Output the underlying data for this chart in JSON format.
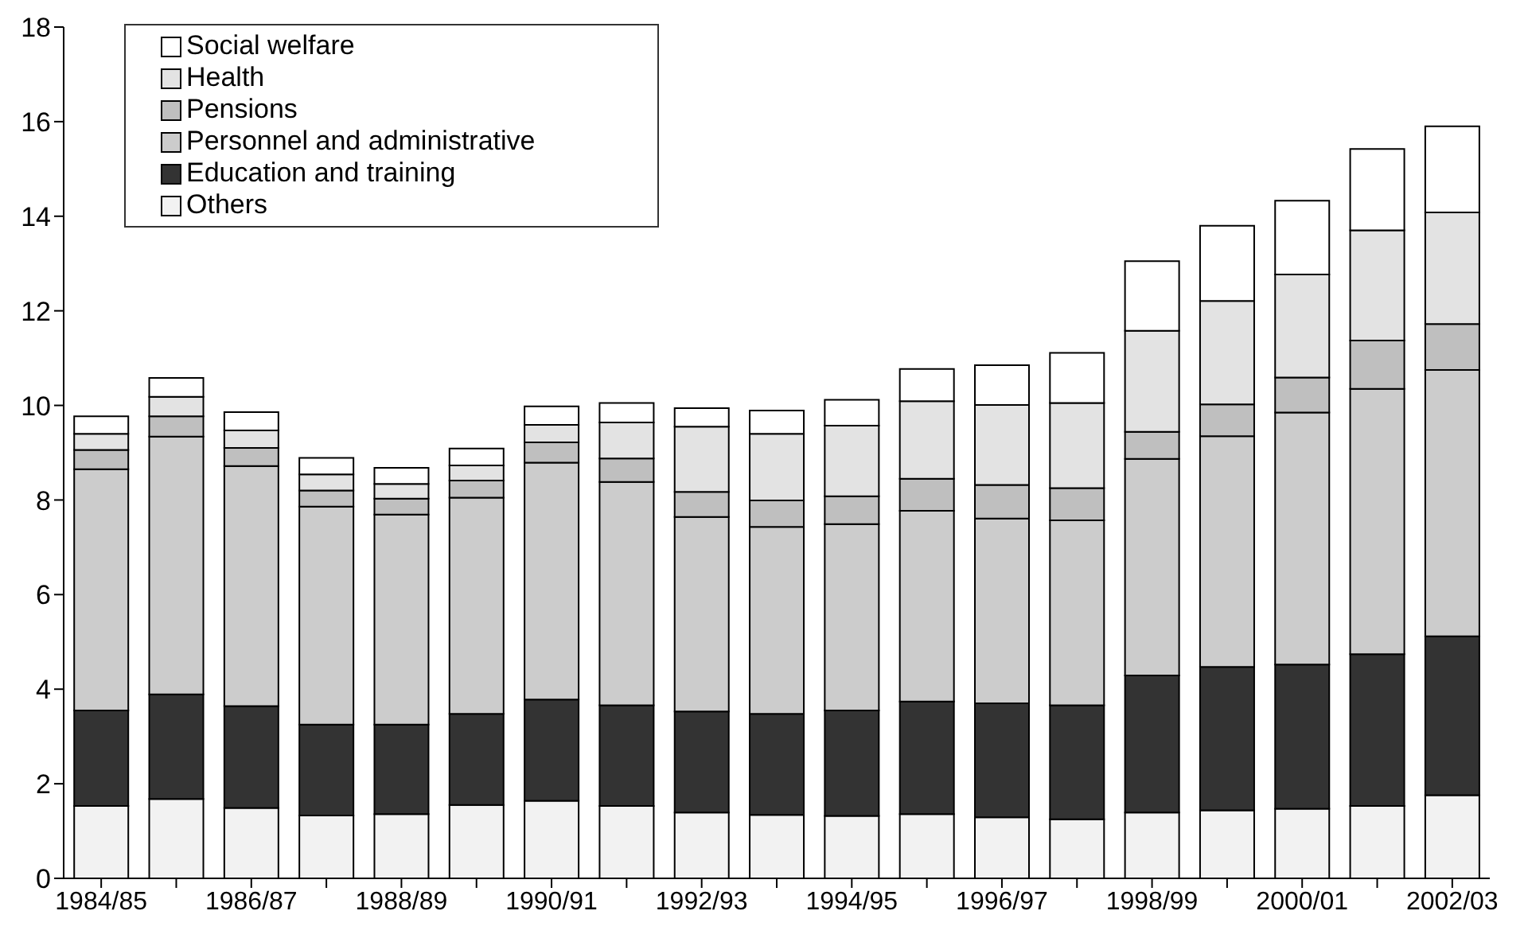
{
  "chart_data": {
    "type": "bar",
    "stacked": true,
    "categories": [
      "1984/85",
      null,
      "1986/87",
      null,
      "1988/89",
      null,
      "1990/91",
      null,
      "1992/93",
      null,
      "1994/95",
      null,
      "1996/97",
      null,
      "1998/99",
      null,
      "2000/01",
      null,
      "2002/03"
    ],
    "series": [
      {
        "name": "Others",
        "color": "#f2f2f2",
        "values": [
          1.53,
          1.68,
          1.49,
          1.33,
          1.36,
          1.55,
          1.64,
          1.53,
          1.39,
          1.34,
          1.32,
          1.36,
          1.29,
          1.25,
          1.39,
          1.44,
          1.47,
          1.53,
          1.76
        ]
      },
      {
        "name": "Education and training",
        "color": "#333333",
        "values": [
          2.02,
          2.21,
          2.15,
          1.92,
          1.89,
          1.93,
          2.14,
          2.13,
          2.14,
          2.14,
          2.23,
          2.38,
          2.41,
          2.41,
          2.9,
          3.03,
          3.05,
          3.21,
          3.36
        ]
      },
      {
        "name": "Personnel and administrative",
        "color": "#cccccc",
        "values": [
          5.1,
          5.45,
          5.08,
          4.61,
          4.44,
          4.57,
          5.01,
          4.72,
          4.11,
          3.95,
          3.94,
          4.03,
          3.91,
          3.91,
          4.58,
          4.88,
          5.33,
          5.61,
          5.63
        ]
      },
      {
        "name": "Pensions",
        "color": "#bfbfbf",
        "values": [
          0.41,
          0.43,
          0.38,
          0.34,
          0.34,
          0.36,
          0.43,
          0.5,
          0.53,
          0.56,
          0.59,
          0.68,
          0.71,
          0.68,
          0.57,
          0.67,
          0.74,
          1.02,
          0.97
        ]
      },
      {
        "name": "Health",
        "color": "#e3e3e3",
        "values": [
          0.34,
          0.41,
          0.37,
          0.34,
          0.31,
          0.32,
          0.37,
          0.76,
          1.38,
          1.41,
          1.49,
          1.64,
          1.69,
          1.8,
          2.14,
          2.19,
          2.18,
          2.33,
          2.36
        ]
      },
      {
        "name": "Social welfare",
        "color": "#ffffff",
        "values": [
          0.37,
          0.4,
          0.39,
          0.35,
          0.34,
          0.36,
          0.39,
          0.41,
          0.39,
          0.49,
          0.55,
          0.68,
          0.84,
          1.06,
          1.47,
          1.59,
          1.56,
          1.72,
          1.82
        ]
      }
    ],
    "ylim": [
      0,
      18
    ],
    "yticks": [
      0,
      2,
      4,
      6,
      8,
      10,
      12,
      14,
      16,
      18
    ],
    "grid": false,
    "legend": "top left"
  }
}
